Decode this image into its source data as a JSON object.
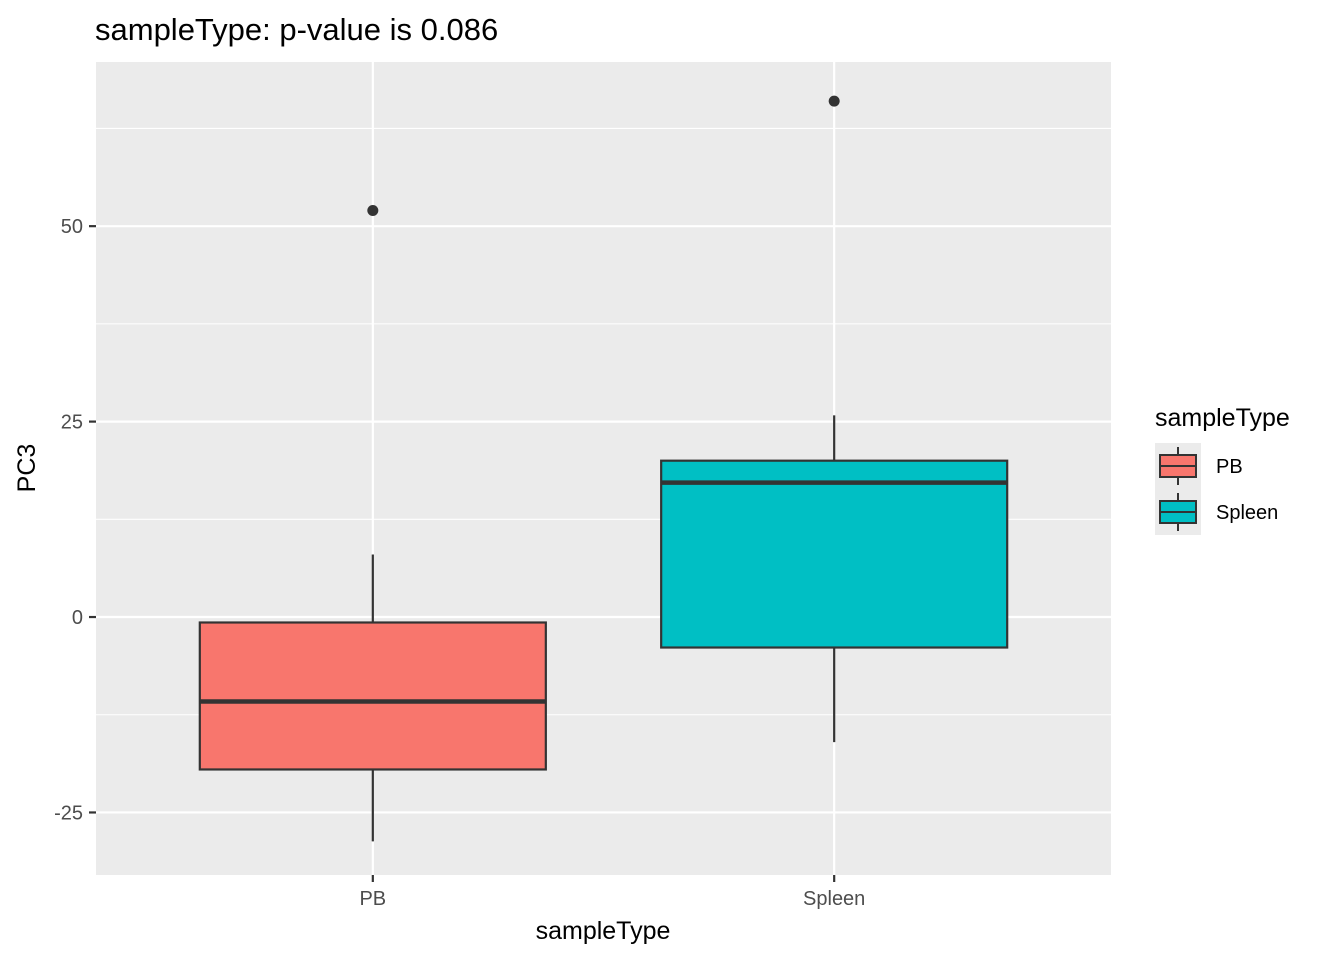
{
  "chart_data": {
    "type": "boxplot",
    "title": "sampleType: p-value is 0.086",
    "xlabel": "sampleType",
    "ylabel": "PC3",
    "categories": [
      "PB",
      "Spleen"
    ],
    "ylim": [
      -33,
      71
    ],
    "yticks": [
      -25,
      0,
      25,
      50
    ],
    "ytick_labels": [
      "-25",
      "0",
      "25",
      "50"
    ],
    "grid": true,
    "legend": {
      "title": "sampleType",
      "position": "right",
      "entries": [
        "PB",
        "Spleen"
      ]
    },
    "colors": {
      "PB": "#F8766D",
      "Spleen": "#00BFC4",
      "panel": "#EBEBEB",
      "grid": "#FFFFFF",
      "outline": "#333333"
    },
    "boxes": [
      {
        "name": "PB",
        "whisker_low": -28.7,
        "q1": -19.5,
        "median": -10.8,
        "q3": -0.7,
        "whisker_high": 8.0,
        "outliers": [
          52.0
        ]
      },
      {
        "name": "Spleen",
        "whisker_low": -16.0,
        "q1": -3.9,
        "median": 17.2,
        "q3": 20.0,
        "whisker_high": 25.8,
        "outliers": [
          66.0
        ]
      }
    ]
  }
}
